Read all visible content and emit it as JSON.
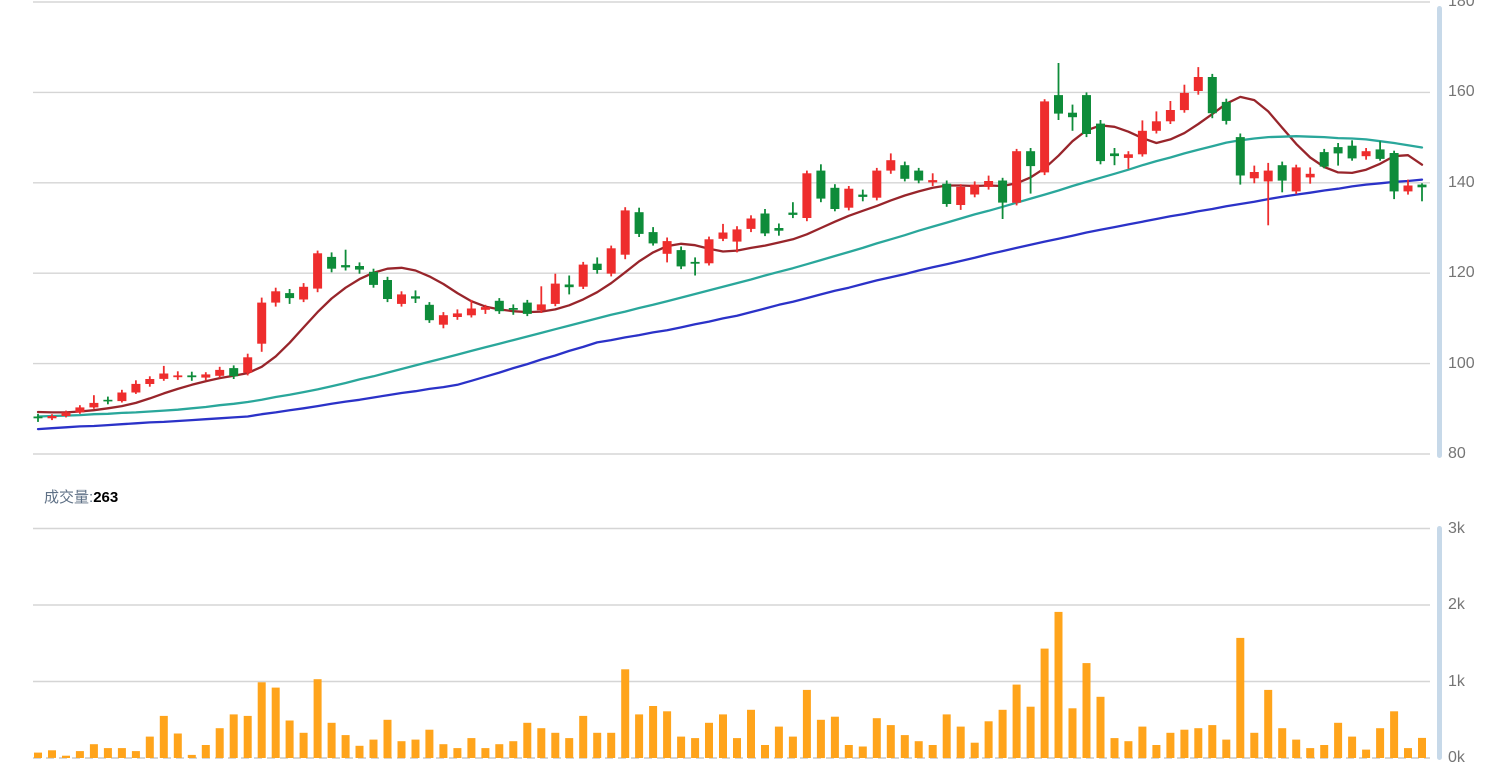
{
  "volume_header": {
    "label": "成交量",
    "separator": ":",
    "value": "263"
  },
  "price_axis": {
    "values": [
      180,
      160,
      140,
      120,
      100,
      80
    ],
    "labels": [
      "180",
      "160",
      "140",
      "120",
      "100",
      "80"
    ]
  },
  "volume_axis": {
    "values": [
      3000,
      2000,
      1000,
      0
    ],
    "labels": [
      "3k",
      "2k",
      "1k",
      "0k"
    ]
  },
  "colors": {
    "up": "#ee2d2d",
    "down": "#0e8c3a",
    "volume_bar": "#ffa41b",
    "grid": "#d5d5d5",
    "axis_text": "#757575",
    "axis_strip": "#c7d9e9",
    "volume_label": "#5f7186"
  },
  "chart_data": {
    "type": "candlestick",
    "title": "",
    "ylabel": "price",
    "price_range": [
      80,
      180
    ],
    "volume_range": [
      0,
      3000
    ],
    "grid": true,
    "legend_position": "none",
    "up_color": "#ee2d2d",
    "down_color": "#0e8c3a",
    "candles": [
      [
        88.3,
        88.9,
        87.1,
        87.9
      ],
      [
        87.9,
        88.8,
        87.5,
        88.4
      ],
      [
        88.4,
        89.6,
        88.1,
        89.2
      ],
      [
        89.2,
        90.8,
        88.9,
        90.3
      ],
      [
        90.3,
        93.0,
        90.0,
        91.3
      ],
      [
        92.0,
        92.7,
        91.0,
        91.7
      ],
      [
        91.7,
        94.2,
        91.4,
        93.6
      ],
      [
        93.6,
        96.3,
        93.3,
        95.5
      ],
      [
        95.5,
        97.2,
        94.9,
        96.6
      ],
      [
        96.6,
        99.5,
        96.2,
        97.8
      ],
      [
        97.0,
        98.3,
        96.4,
        97.4
      ],
      [
        97.4,
        98.2,
        96.2,
        97.0
      ],
      [
        96.9,
        98.1,
        96.3,
        97.6
      ],
      [
        97.3,
        99.3,
        96.9,
        98.6
      ],
      [
        99.0,
        99.6,
        96.6,
        97.2
      ],
      [
        98.0,
        102.2,
        97.4,
        101.4
      ],
      [
        104.4,
        114.6,
        102.6,
        113.5
      ],
      [
        113.5,
        116.8,
        112.6,
        116.0
      ],
      [
        115.6,
        116.5,
        113.2,
        114.5
      ],
      [
        114.2,
        117.8,
        113.6,
        117.0
      ],
      [
        116.6,
        125.0,
        115.8,
        124.4
      ],
      [
        123.6,
        124.6,
        120.2,
        121.0
      ],
      [
        121.8,
        125.2,
        120.6,
        121.3
      ],
      [
        121.6,
        122.4,
        119.9,
        120.8
      ],
      [
        120.3,
        121.0,
        116.8,
        117.4
      ],
      [
        118.5,
        119.2,
        113.6,
        114.3
      ],
      [
        113.2,
        116.0,
        112.6,
        115.3
      ],
      [
        114.9,
        116.2,
        113.4,
        114.4
      ],
      [
        113.0,
        113.6,
        109.0,
        109.6
      ],
      [
        108.6,
        111.4,
        107.8,
        110.7
      ],
      [
        110.3,
        112.0,
        109.7,
        111.1
      ],
      [
        110.7,
        114.1,
        110.2,
        112.2
      ],
      [
        111.9,
        113.0,
        111.0,
        112.5
      ],
      [
        113.9,
        114.5,
        111.0,
        111.6
      ],
      [
        112.3,
        113.1,
        110.8,
        111.9
      ],
      [
        113.5,
        114.1,
        110.5,
        111.0
      ],
      [
        111.8,
        117.1,
        111.2,
        113.1
      ],
      [
        113.2,
        119.9,
        112.7,
        117.7
      ],
      [
        117.5,
        119.5,
        115.3,
        116.9
      ],
      [
        117.0,
        122.5,
        116.5,
        121.9
      ],
      [
        122.1,
        123.5,
        119.9,
        120.7
      ],
      [
        119.9,
        126.1,
        119.3,
        125.5
      ],
      [
        124.1,
        134.6,
        123.1,
        133.9
      ],
      [
        133.5,
        134.5,
        128.0,
        128.7
      ],
      [
        129.1,
        130.2,
        126.1,
        126.6
      ],
      [
        124.3,
        127.9,
        122.4,
        127.1
      ],
      [
        125.1,
        125.9,
        120.9,
        121.5
      ],
      [
        122.5,
        123.5,
        119.5,
        122.1
      ],
      [
        122.2,
        128.1,
        121.7,
        127.5
      ],
      [
        127.6,
        130.9,
        127.1,
        129.0
      ],
      [
        127.0,
        130.4,
        124.6,
        129.7
      ],
      [
        129.8,
        132.8,
        129.1,
        132.1
      ],
      [
        133.2,
        134.2,
        128.2,
        128.8
      ],
      [
        130.0,
        131.0,
        128.3,
        129.4
      ],
      [
        133.4,
        135.7,
        132.2,
        132.9
      ],
      [
        132.2,
        142.7,
        131.5,
        142.1
      ],
      [
        142.7,
        144.1,
        135.7,
        136.5
      ],
      [
        138.9,
        139.7,
        133.7,
        134.2
      ],
      [
        134.5,
        139.3,
        133.9,
        138.7
      ],
      [
        137.4,
        138.5,
        135.9,
        136.9
      ],
      [
        136.7,
        143.3,
        136.1,
        142.7
      ],
      [
        142.7,
        146.5,
        142.0,
        145.0
      ],
      [
        143.9,
        144.7,
        140.3,
        140.9
      ],
      [
        142.7,
        143.3,
        139.9,
        140.5
      ],
      [
        140.1,
        142.1,
        139.3,
        140.6
      ],
      [
        139.8,
        140.5,
        134.7,
        135.3
      ],
      [
        135.1,
        139.7,
        134.0,
        139.1
      ],
      [
        137.4,
        140.3,
        136.8,
        139.6
      ],
      [
        139.1,
        141.6,
        138.5,
        140.4
      ],
      [
        140.5,
        141.1,
        132.0,
        135.6
      ],
      [
        135.6,
        147.5,
        135.0,
        147.0
      ],
      [
        147.0,
        147.7,
        137.6,
        143.7
      ],
      [
        142.3,
        158.5,
        141.7,
        158.0
      ],
      [
        159.4,
        166.5,
        153.9,
        155.3
      ],
      [
        155.5,
        157.3,
        151.5,
        154.5
      ],
      [
        159.4,
        160.0,
        150.1,
        150.8
      ],
      [
        153.1,
        153.9,
        144.1,
        144.8
      ],
      [
        146.5,
        147.7,
        143.9,
        145.9
      ],
      [
        145.5,
        147.0,
        143.1,
        146.3
      ],
      [
        146.3,
        153.8,
        145.8,
        151.5
      ],
      [
        151.5,
        155.8,
        150.9,
        153.6
      ],
      [
        153.6,
        158.1,
        153.0,
        156.1
      ],
      [
        156.1,
        161.7,
        155.5,
        159.9
      ],
      [
        160.3,
        165.6,
        159.5,
        163.4
      ],
      [
        163.4,
        164.1,
        154.3,
        155.4
      ],
      [
        157.9,
        158.6,
        152.9,
        153.7
      ],
      [
        150.1,
        150.9,
        139.6,
        141.6
      ],
      [
        141.0,
        143.8,
        139.9,
        142.4
      ],
      [
        140.3,
        144.4,
        130.6,
        142.7
      ],
      [
        143.9,
        144.7,
        137.9,
        140.5
      ],
      [
        138.1,
        144.0,
        137.5,
        143.4
      ],
      [
        141.2,
        143.4,
        139.8,
        142.0
      ],
      [
        146.8,
        147.5,
        143.2,
        143.6
      ],
      [
        147.9,
        148.8,
        143.8,
        146.5
      ],
      [
        148.2,
        149.4,
        144.9,
        145.4
      ],
      [
        145.9,
        147.7,
        145.1,
        147.0
      ],
      [
        147.4,
        149.2,
        144.9,
        145.3
      ],
      [
        146.6,
        147.1,
        136.4,
        138.1
      ],
      [
        138.1,
        140.7,
        137.4,
        139.4
      ],
      [
        139.6,
        139.9,
        135.9,
        139.0
      ]
    ],
    "volumes": [
      70,
      100,
      30,
      90,
      180,
      130,
      130,
      90,
      280,
      550,
      320,
      40,
      170,
      390,
      570,
      550,
      990,
      920,
      490,
      330,
      1030,
      460,
      300,
      160,
      240,
      500,
      220,
      240,
      370,
      180,
      130,
      260,
      130,
      180,
      220,
      460,
      390,
      330,
      260,
      550,
      330,
      330,
      1160,
      570,
      680,
      610,
      280,
      260,
      460,
      570,
      260,
      630,
      170,
      410,
      280,
      890,
      500,
      540,
      170,
      150,
      520,
      430,
      300,
      220,
      170,
      570,
      410,
      200,
      480,
      630,
      960,
      670,
      1430,
      1910,
      650,
      1240,
      800,
      260,
      220,
      410,
      170,
      330,
      370,
      390,
      430,
      240,
      1570,
      330,
      890,
      390,
      240,
      130,
      170,
      460,
      280,
      110,
      390,
      610,
      130,
      263
    ],
    "ma_lines": [
      {
        "name": "ma-fast-line",
        "color": "#98252b",
        "values": [
          89.3,
          89.2,
          89.2,
          89.4,
          89.7,
          90.1,
          90.6,
          91.3,
          92.3,
          93.4,
          94.4,
          95.3,
          96.1,
          96.8,
          97.3,
          97.9,
          99.3,
          101.6,
          104.6,
          108.0,
          111.4,
          114.4,
          116.8,
          118.7,
          120.1,
          121.0,
          121.2,
          120.6,
          119.3,
          117.6,
          115.6,
          113.8,
          112.6,
          112.0,
          111.6,
          111.4,
          111.5,
          112.0,
          112.9,
          114.2,
          115.8,
          117.8,
          120.2,
          122.6,
          124.6,
          126.0,
          126.5,
          126.2,
          125.4,
          124.8,
          125.0,
          125.6,
          126.1,
          126.8,
          127.5,
          128.6,
          130.0,
          131.4,
          132.7,
          133.8,
          134.9,
          136.1,
          137.2,
          138.1,
          138.9,
          139.4,
          139.4,
          139.3,
          139.4,
          139.3,
          139.9,
          141.2,
          143.2,
          146.0,
          149.2,
          151.6,
          152.7,
          152.4,
          151.3,
          149.9,
          148.8,
          149.6,
          151.0,
          153.0,
          155.2,
          157.5,
          159.0,
          158.3,
          155.8,
          152.2,
          148.6,
          145.6,
          143.5,
          142.3,
          142.2,
          142.9,
          144.2,
          145.9,
          146.1,
          144.0
        ]
      },
      {
        "name": "ma-mid-line",
        "color": "#2aa79b",
        "values": [
          88.3,
          88.4,
          88.5,
          88.6,
          88.8,
          88.9,
          89.1,
          89.2,
          89.4,
          89.6,
          89.8,
          90.1,
          90.4,
          90.8,
          91.1,
          91.5,
          92.0,
          92.6,
          93.1,
          93.7,
          94.3,
          95.0,
          95.7,
          96.5,
          97.2,
          98.0,
          98.8,
          99.6,
          100.4,
          101.2,
          102.0,
          102.8,
          103.6,
          104.4,
          105.2,
          106.0,
          106.8,
          107.6,
          108.4,
          109.2,
          110.0,
          110.8,
          111.5,
          112.3,
          113.0,
          113.8,
          114.6,
          115.4,
          116.2,
          117.0,
          117.8,
          118.6,
          119.5,
          120.3,
          121.1,
          122.0,
          122.9,
          123.8,
          124.7,
          125.6,
          126.6,
          127.5,
          128.4,
          129.4,
          130.3,
          131.2,
          132.1,
          133.0,
          133.8,
          134.7,
          135.6,
          136.5,
          137.4,
          138.3,
          139.3,
          140.2,
          141.1,
          142.0,
          142.9,
          143.9,
          144.8,
          145.6,
          146.5,
          147.3,
          148.1,
          148.9,
          149.4,
          149.8,
          150.1,
          150.2,
          150.3,
          150.2,
          150.1,
          149.9,
          149.8,
          149.6,
          149.2,
          148.8,
          148.3,
          147.8
        ]
      },
      {
        "name": "ma-slow-line",
        "color": "#2b32c8",
        "values": [
          85.5,
          85.7,
          85.9,
          86.1,
          86.2,
          86.4,
          86.6,
          86.8,
          87.0,
          87.1,
          87.3,
          87.5,
          87.7,
          87.9,
          88.1,
          88.3,
          88.8,
          89.2,
          89.7,
          90.1,
          90.6,
          91.1,
          91.6,
          92.0,
          92.5,
          93.0,
          93.5,
          93.9,
          94.4,
          94.8,
          95.3,
          96.2,
          97.1,
          98.0,
          99.0,
          99.9,
          100.9,
          101.8,
          102.8,
          103.7,
          104.7,
          105.2,
          105.8,
          106.3,
          106.9,
          107.4,
          108.0,
          108.7,
          109.3,
          110.0,
          110.6,
          111.4,
          112.2,
          113.0,
          113.7,
          114.5,
          115.3,
          116.1,
          116.8,
          117.6,
          118.4,
          119.1,
          119.8,
          120.6,
          121.3,
          122.0,
          122.7,
          123.4,
          124.2,
          124.9,
          125.6,
          126.3,
          127.0,
          127.6,
          128.3,
          129.0,
          129.6,
          130.2,
          130.8,
          131.4,
          132.0,
          132.6,
          133.1,
          133.7,
          134.2,
          134.8,
          135.3,
          135.8,
          136.4,
          136.9,
          137.4,
          137.8,
          138.3,
          138.7,
          139.2,
          139.6,
          139.9,
          140.2,
          140.4,
          140.7
        ]
      }
    ]
  }
}
